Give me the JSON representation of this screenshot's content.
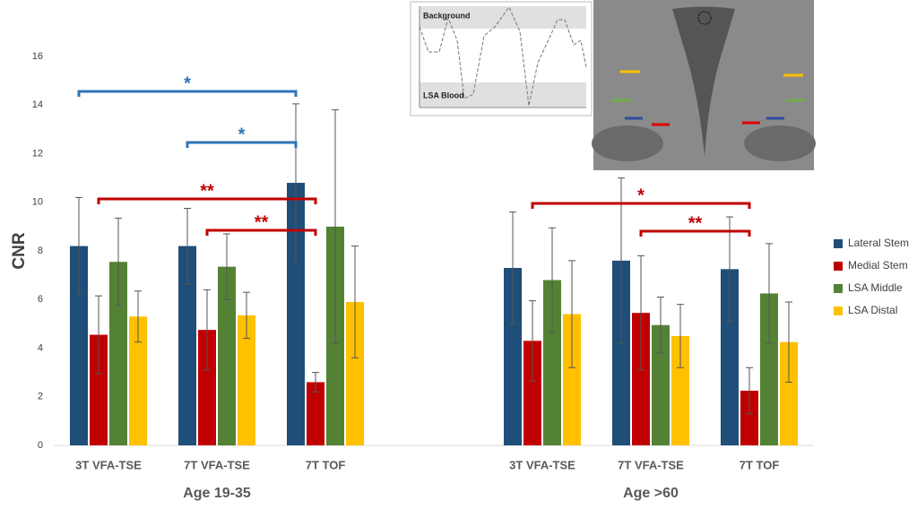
{
  "chart_data": {
    "type": "bar",
    "y_label": "CNR",
    "categories": [
      "3T VFA-TSE",
      "7T VFA-TSE",
      "7T TOF",
      "3T VFA-TSE",
      "7T VFA-TSE",
      "7T TOF"
    ],
    "group_labels": [
      "Age 19-35",
      "Age >60"
    ],
    "series": [
      {
        "name": "Lateral Stem",
        "color": "#1f4e79",
        "values": [
          8.2,
          8.2,
          10.8,
          7.3,
          7.6,
          7.25
        ],
        "errors": [
          2.0,
          1.55,
          3.25,
          2.3,
          3.4,
          2.15
        ]
      },
      {
        "name": "Medial Stem",
        "color": "#c00000",
        "values": [
          4.55,
          4.75,
          2.6,
          4.3,
          5.45,
          2.25
        ],
        "errors": [
          1.6,
          1.65,
          0.4,
          1.65,
          2.35,
          0.95
        ]
      },
      {
        "name": "LSA Middle",
        "color": "#548235",
        "values": [
          7.55,
          7.35,
          9.0,
          6.8,
          4.95,
          6.25
        ],
        "errors": [
          1.8,
          1.35,
          4.8,
          2.15,
          1.15,
          2.05
        ]
      },
      {
        "name": "LSA Distal",
        "color": "#ffc000",
        "values": [
          5.3,
          5.35,
          5.9,
          5.4,
          4.5,
          4.25
        ],
        "errors": [
          1.05,
          0.95,
          2.3,
          2.2,
          1.3,
          1.65
        ]
      }
    ],
    "ylim": [
      0,
      16
    ],
    "yticks": [
      0,
      2,
      4,
      6,
      8,
      10,
      12,
      14,
      16
    ],
    "annotations": [
      {
        "text": "*",
        "color": "#2e75b6"
      },
      {
        "text": "*",
        "color": "#2e75b6"
      },
      {
        "text": "**",
        "color": "#c00000"
      },
      {
        "text": "**",
        "color": "#c00000"
      },
      {
        "text": "*",
        "color": "#c00000"
      },
      {
        "text": "**",
        "color": "#c00000"
      }
    ]
  },
  "inset": {
    "band_labels": [
      "Background",
      "LSA Blood"
    ]
  }
}
